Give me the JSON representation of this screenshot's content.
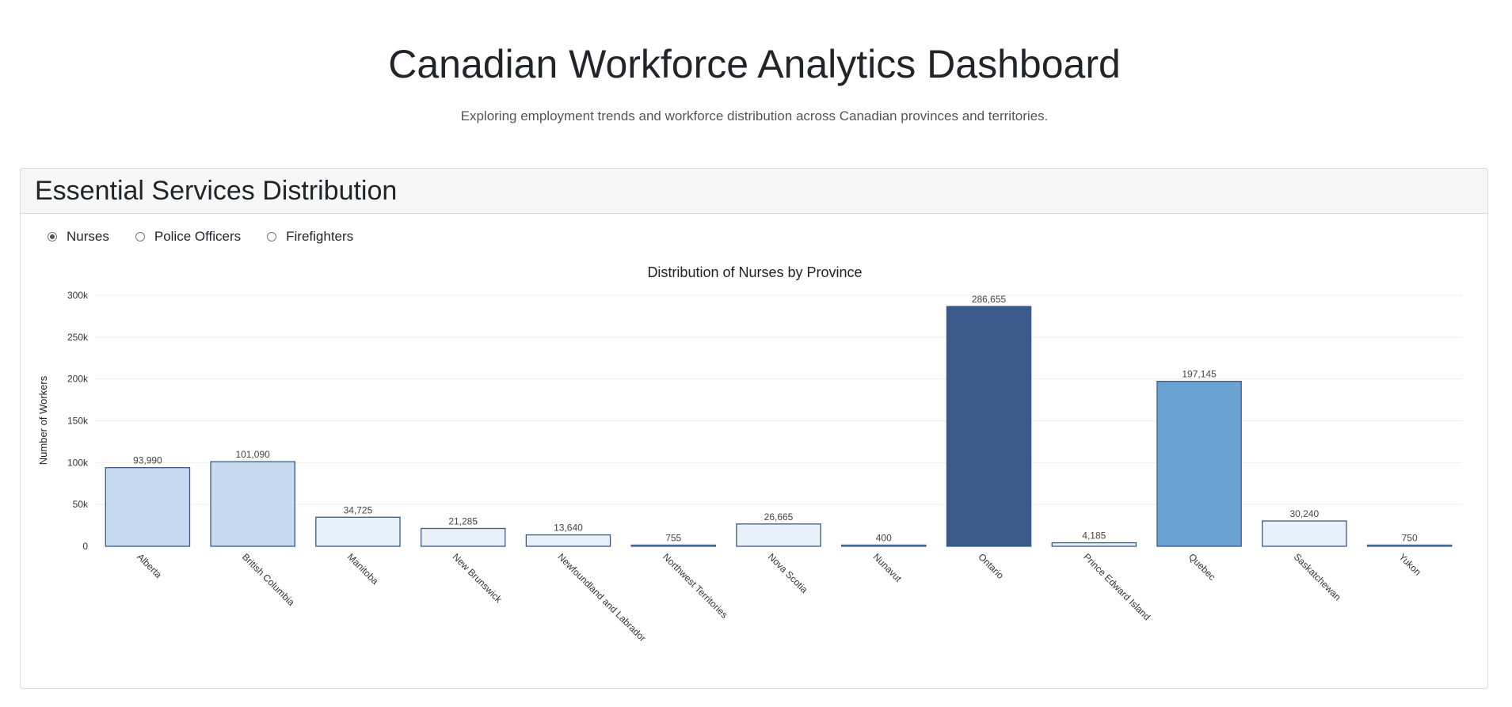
{
  "header": {
    "title": "Canadian Workforce Analytics Dashboard",
    "subtitle": "Exploring employment trends and workforce distribution across Canadian provinces and territories."
  },
  "card": {
    "title": "Essential Services Distribution",
    "options": [
      {
        "label": "Nurses",
        "checked": true
      },
      {
        "label": "Police Officers",
        "checked": false
      },
      {
        "label": "Firefighters",
        "checked": false
      }
    ]
  },
  "chart_data": {
    "type": "bar",
    "title": "Distribution of Nurses by Province",
    "xlabel": "",
    "ylabel": "Number of Workers",
    "ylim": [
      0,
      300000
    ],
    "yticks": [
      0,
      50000,
      100000,
      150000,
      200000,
      250000,
      300000
    ],
    "ytick_labels": [
      "0",
      "50k",
      "100k",
      "150k",
      "200k",
      "250k",
      "300k"
    ],
    "grid": true,
    "categories": [
      "Alberta",
      "British Columbia",
      "Manitoba",
      "New Brunswick",
      "Newfoundland and Labrador",
      "Northwest Territories",
      "Nova Scotia",
      "Nunavut",
      "Ontario",
      "Prince Edward Island",
      "Quebec",
      "Saskatchewan",
      "Yukon"
    ],
    "values": [
      93990,
      101090,
      34725,
      21285,
      13640,
      755,
      26665,
      400,
      286655,
      4185,
      197145,
      30240,
      750
    ],
    "value_labels": [
      "93,990",
      "101,090",
      "34,725",
      "21,285",
      "13,640",
      "755",
      "26,665",
      "400",
      "286,655",
      "4,185",
      "197,145",
      "30,240",
      "750"
    ],
    "colors": {
      "scale": [
        "#e8f0fa",
        "#c6dbef",
        "#6aa3d1",
        "#3a5a8a"
      ],
      "stroke": "#3a5a8a"
    }
  }
}
